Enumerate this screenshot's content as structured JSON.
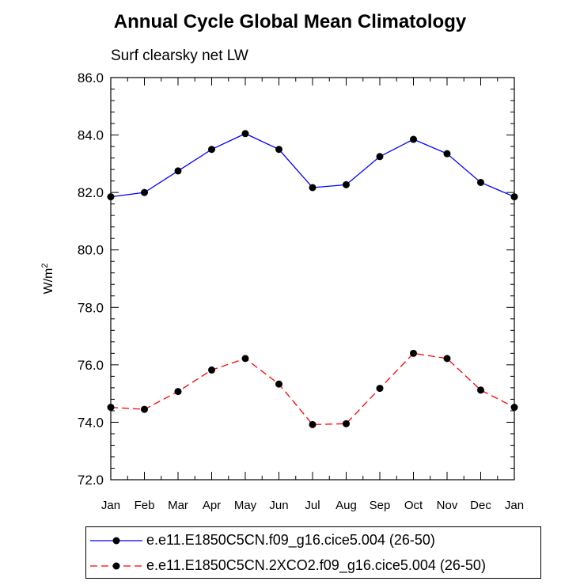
{
  "chart_data": {
    "type": "line",
    "title": "Annual Cycle Global Mean Climatology",
    "subtitle": "Surf clearsky net LW",
    "ylabel": "W/m",
    "ylabel_sup": "2",
    "xlabel": "",
    "ylim": [
      72.0,
      86.0
    ],
    "y_ticks": [
      "72.0",
      "74.0",
      "76.0",
      "78.0",
      "80.0",
      "82.0",
      "84.0",
      "86.0"
    ],
    "categories": [
      "Jan",
      "Feb",
      "Mar",
      "Apr",
      "May",
      "Jun",
      "Jul",
      "Aug",
      "Sep",
      "Oct",
      "Nov",
      "Dec",
      "Jan"
    ],
    "series": [
      {
        "name": "e.e11.E1850C5CN.f09_g16.cice5.004 (26-50)",
        "color": "#0000ff",
        "dash": "solid",
        "values": [
          81.85,
          82.0,
          82.75,
          83.5,
          84.05,
          83.5,
          82.17,
          82.27,
          83.25,
          83.85,
          83.35,
          82.35,
          81.85
        ]
      },
      {
        "name": "e.e11.E1850C5CN.2XCO2.f09_g16.cice5.004 (26-50)",
        "color": "#ff0000",
        "dash": "dashed",
        "values": [
          74.52,
          74.45,
          75.07,
          75.82,
          76.22,
          75.33,
          73.92,
          73.95,
          75.18,
          76.4,
          76.22,
          75.12,
          74.52
        ]
      }
    ],
    "legend_position": "bottom"
  }
}
